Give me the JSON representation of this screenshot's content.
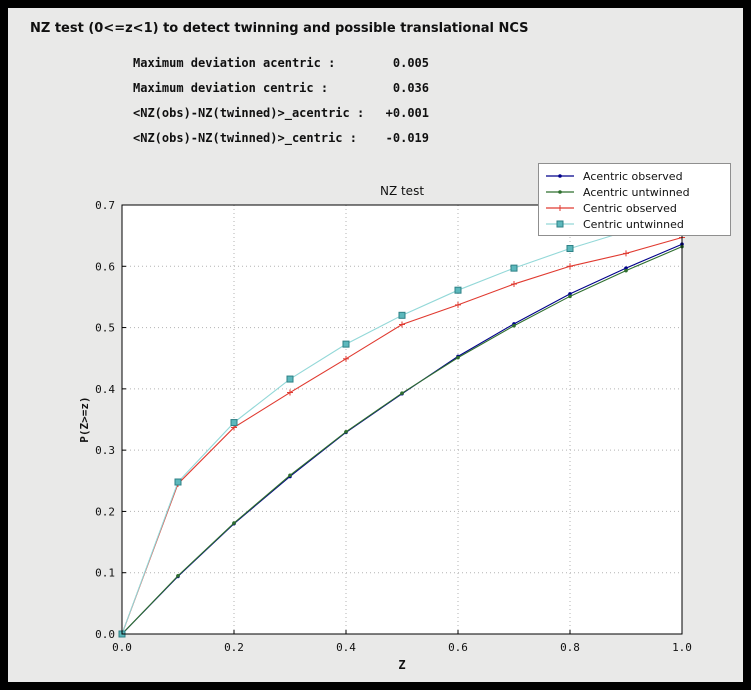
{
  "window": {
    "title": "NZ test (0<=z<1) to detect twinning and possible translational NCS",
    "background_color": "#e9e9e8",
    "frame_color": "#000000"
  },
  "stats": [
    {
      "label": "Maximum deviation acentric :",
      "value": "0.005"
    },
    {
      "label": "Maximum deviation centric :",
      "value": "0.036"
    },
    {
      "label": "<NZ(obs)-NZ(twinned)>_acentric :",
      "value": "+0.001"
    },
    {
      "label": "<NZ(obs)-NZ(twinned)>_centric :",
      "value": "-0.019"
    }
  ],
  "chart_data": {
    "type": "line",
    "title": "NZ test",
    "xlabel": "Z",
    "ylabel": "P(Z>=z)",
    "xlim": [
      0.0,
      1.0
    ],
    "ylim": [
      0.0,
      0.7
    ],
    "xticks": [
      0.0,
      0.2,
      0.4,
      0.6,
      0.8,
      1.0
    ],
    "yticks": [
      0.0,
      0.1,
      0.2,
      0.3,
      0.4,
      0.5,
      0.6,
      0.7
    ],
    "grid": "dotted",
    "grid_color": "#b3b3b3",
    "plot_background": "#ffffff",
    "legend_position": "top-right",
    "x": [
      0.0,
      0.1,
      0.2,
      0.3,
      0.4,
      0.5,
      0.6,
      0.7,
      0.8,
      0.9,
      1.0
    ],
    "series": [
      {
        "name": "Acentric observed",
        "color": "#00008b",
        "marker": "dot",
        "values": [
          0.0,
          0.094,
          0.18,
          0.257,
          0.329,
          0.392,
          0.453,
          0.506,
          0.555,
          0.597,
          0.636
        ]
      },
      {
        "name": "Acentric untwinned",
        "color": "#2f6f2f",
        "marker": "dot",
        "values": [
          0.0,
          0.095,
          0.181,
          0.259,
          0.33,
          0.393,
          0.451,
          0.503,
          0.551,
          0.593,
          0.632
        ]
      },
      {
        "name": "Centric observed",
        "color": "#e03a30",
        "marker": "plus",
        "values": [
          0.0,
          0.245,
          0.337,
          0.394,
          0.449,
          0.505,
          0.537,
          0.571,
          0.6,
          0.621,
          0.647
        ]
      },
      {
        "name": "Centric untwinned",
        "color": "#93d8d8",
        "marker": "square",
        "marker_fill": "#5cb8bc",
        "marker_edge": "#2e8186",
        "values": [
          0.0,
          0.248,
          0.345,
          0.416,
          0.473,
          0.52,
          0.561,
          0.597,
          0.629,
          0.657,
          0.683
        ]
      }
    ]
  }
}
